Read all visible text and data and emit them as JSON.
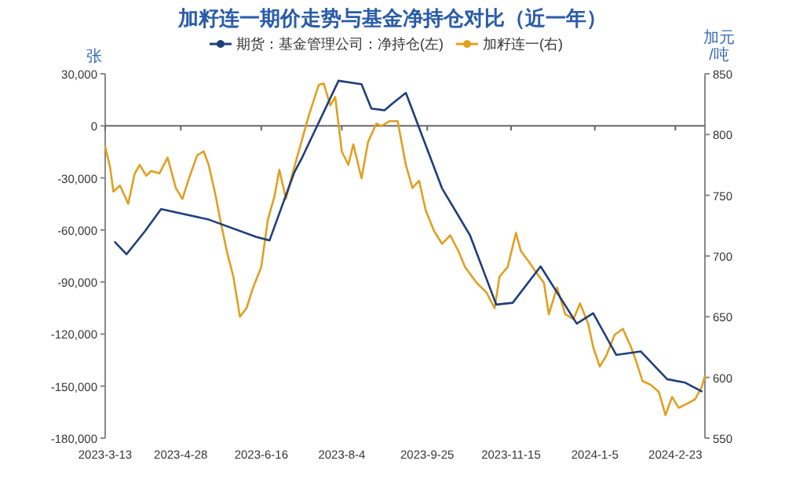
{
  "chart_data": {
    "type": "line",
    "title": "加籽连一期价走势与基金净持仓对比（近一年）",
    "ylabel": "张",
    "y2label": "加元/吨",
    "legend": "top",
    "xlim": [
      "2023-03-13",
      "2024-03-12"
    ],
    "xticks": [
      {
        "value": "2023-03-13",
        "label": "2023-3-13"
      },
      {
        "value": "2023-04-28",
        "label": "2023-4-28"
      },
      {
        "value": "2023-06-16",
        "label": "2023-6-16"
      },
      {
        "value": "2023-08-04",
        "label": "2023-8-4"
      },
      {
        "value": "2023-09-25",
        "label": "2023-9-25"
      },
      {
        "value": "2023-11-15",
        "label": "2023-11-15"
      },
      {
        "value": "2024-01-05",
        "label": "2024-1-5"
      },
      {
        "value": "2024-02-23",
        "label": "2024-2-23"
      }
    ],
    "ylim": [
      -180000,
      30000
    ],
    "yticks": [
      {
        "value": -180000,
        "label": "-180,000"
      },
      {
        "value": -150000,
        "label": "-150,000"
      },
      {
        "value": -120000,
        "label": "-120,000"
      },
      {
        "value": -90000,
        "label": "-90,000"
      },
      {
        "value": -60000,
        "label": "-60,000"
      },
      {
        "value": -30000,
        "label": "-30,000"
      },
      0,
      {
        "value": 30000,
        "label": "30,000"
      }
    ],
    "y2lim": [
      550,
      850
    ],
    "y2ticks": [
      550,
      600,
      650,
      700,
      750,
      800,
      850
    ],
    "series": [
      {
        "name": "期货：基金管理公司：净持仓(左)",
        "color": "#1f3f7a",
        "axis": "y",
        "x": [
          "2023-03-19",
          "2023-03-26",
          "2023-04-06",
          "2023-04-16",
          "2023-05-15",
          "2023-06-13",
          "2023-06-21",
          "2023-07-06",
          "2023-07-11",
          "2023-08-02",
          "2023-08-16",
          "2023-08-22",
          "2023-08-30",
          "2023-09-04",
          "2023-09-12",
          "2023-10-04",
          "2023-10-21",
          "2023-11-06",
          "2023-11-16",
          "2023-12-03",
          "2023-12-25",
          "2024-01-04",
          "2024-01-18",
          "2024-02-02",
          "2024-02-18",
          "2024-02-29",
          "2024-03-10"
        ],
        "values": [
          -67000,
          -74000,
          -61000,
          -48000,
          -54000,
          -64000,
          -66000,
          -27000,
          -18000,
          26000,
          24000,
          10000,
          9000,
          13000,
          19000,
          -36000,
          -63000,
          -103000,
          -102000,
          -81000,
          -114000,
          -108000,
          -132000,
          -130000,
          -146000,
          -148000,
          -153000
        ]
      },
      {
        "name": "加籽连一(右)",
        "color": "#e0a020",
        "axis": "y2",
        "x": [
          "2023-03-13",
          "2023-03-16",
          "2023-03-18",
          "2023-03-22",
          "2023-03-27",
          "2023-03-31",
          "2023-04-03",
          "2023-04-07",
          "2023-04-10",
          "2023-04-15",
          "2023-04-20",
          "2023-04-25",
          "2023-04-29",
          "2023-05-03",
          "2023-05-08",
          "2023-05-12",
          "2023-05-15",
          "2023-05-19",
          "2023-05-22",
          "2023-05-26",
          "2023-05-30",
          "2023-06-03",
          "2023-06-07",
          "2023-06-11",
          "2023-06-16",
          "2023-06-20",
          "2023-06-24",
          "2023-06-27",
          "2023-07-01",
          "2023-07-05",
          "2023-07-15",
          "2023-07-21",
          "2023-07-24",
          "2023-07-28",
          "2023-07-31",
          "2023-08-04",
          "2023-08-08",
          "2023-08-11",
          "2023-08-16",
          "2023-08-20",
          "2023-08-25",
          "2023-08-28",
          "2023-09-02",
          "2023-09-07",
          "2023-09-12",
          "2023-09-16",
          "2023-09-20",
          "2023-09-24",
          "2023-09-29",
          "2023-10-04",
          "2023-10-09",
          "2023-10-14",
          "2023-10-18",
          "2023-10-25",
          "2023-10-31",
          "2023-11-05",
          "2023-11-08",
          "2023-11-13",
          "2023-11-18",
          "2023-11-21",
          "2023-11-26",
          "2023-11-30",
          "2023-12-05",
          "2023-12-08",
          "2023-12-13",
          "2023-12-18",
          "2023-12-23",
          "2023-12-27",
          "2024-01-01",
          "2024-01-04",
          "2024-01-08",
          "2024-01-12",
          "2024-01-17",
          "2024-01-22",
          "2024-01-27",
          "2024-01-30",
          "2024-02-03",
          "2024-02-08",
          "2024-02-13",
          "2024-02-17",
          "2024-02-21",
          "2024-02-25",
          "2024-03-02",
          "2024-03-06",
          "2024-03-10",
          "2024-03-12"
        ],
        "values": [
          790,
          773,
          753,
          758,
          743,
          768,
          775,
          766,
          770,
          768,
          781,
          756,
          747,
          764,
          783,
          786,
          775,
          751,
          730,
          704,
          683,
          650,
          657,
          674,
          691,
          730,
          749,
          771,
          747,
          768,
          816,
          841,
          842,
          824,
          831,
          786,
          775,
          792,
          764,
          794,
          809,
          807,
          811,
          811,
          775,
          756,
          762,
          738,
          721,
          710,
          717,
          704,
          691,
          678,
          670,
          657,
          683,
          691,
          719,
          704,
          695,
          687,
          678,
          652,
          674,
          652,
          648,
          661,
          644,
          625,
          609,
          618,
          635,
          640,
          625,
          614,
          597,
          594,
          588,
          569,
          584,
          575,
          579,
          582,
          592,
          601
        ]
      }
    ]
  }
}
